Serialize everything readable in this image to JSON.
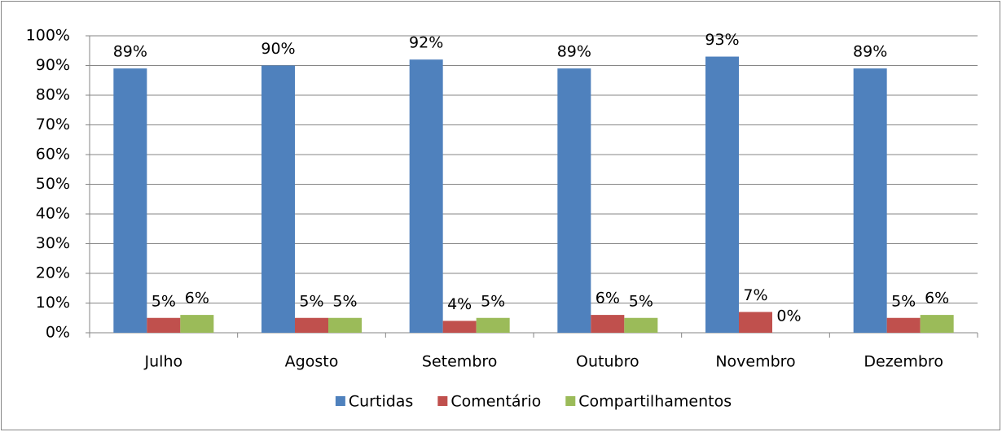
{
  "chart_data": {
    "type": "bar",
    "categories": [
      "Julho",
      "Agosto",
      "Setembro",
      "Outubro",
      "Novembro",
      "Dezembro"
    ],
    "series": [
      {
        "name": "Curtidas",
        "color": "#4f81bd",
        "values": [
          89,
          90,
          92,
          89,
          93,
          89
        ],
        "value_labels": [
          "89%",
          "90%",
          "92%",
          "89%",
          "93%",
          "89%"
        ]
      },
      {
        "name": "Comentário",
        "color": "#c0504d",
        "values": [
          5,
          5,
          4,
          6,
          7,
          5
        ],
        "value_labels": [
          "5%",
          "5%",
          "4%",
          "6%",
          "7%",
          "5%"
        ]
      },
      {
        "name": "Compartilhamentos",
        "color": "#9bbb59",
        "values": [
          6,
          5,
          5,
          5,
          0,
          6
        ],
        "value_labels": [
          "6%",
          "5%",
          "5%",
          "5%",
          "0%",
          "6%"
        ]
      }
    ],
    "ylim": [
      0,
      100
    ],
    "yticks": [
      {
        "value": 0,
        "label": "0%"
      },
      {
        "value": 10,
        "label": "10%"
      },
      {
        "value": 20,
        "label": "20%"
      },
      {
        "value": 30,
        "label": "30%"
      },
      {
        "value": 40,
        "label": "40%"
      },
      {
        "value": 50,
        "label": "50%"
      },
      {
        "value": 60,
        "label": "60%"
      },
      {
        "value": 70,
        "label": "70%"
      },
      {
        "value": 80,
        "label": "80%"
      },
      {
        "value": 90,
        "label": "90%"
      },
      {
        "value": 100,
        "label": "100%"
      }
    ],
    "grid": true,
    "legend": "bottom"
  }
}
